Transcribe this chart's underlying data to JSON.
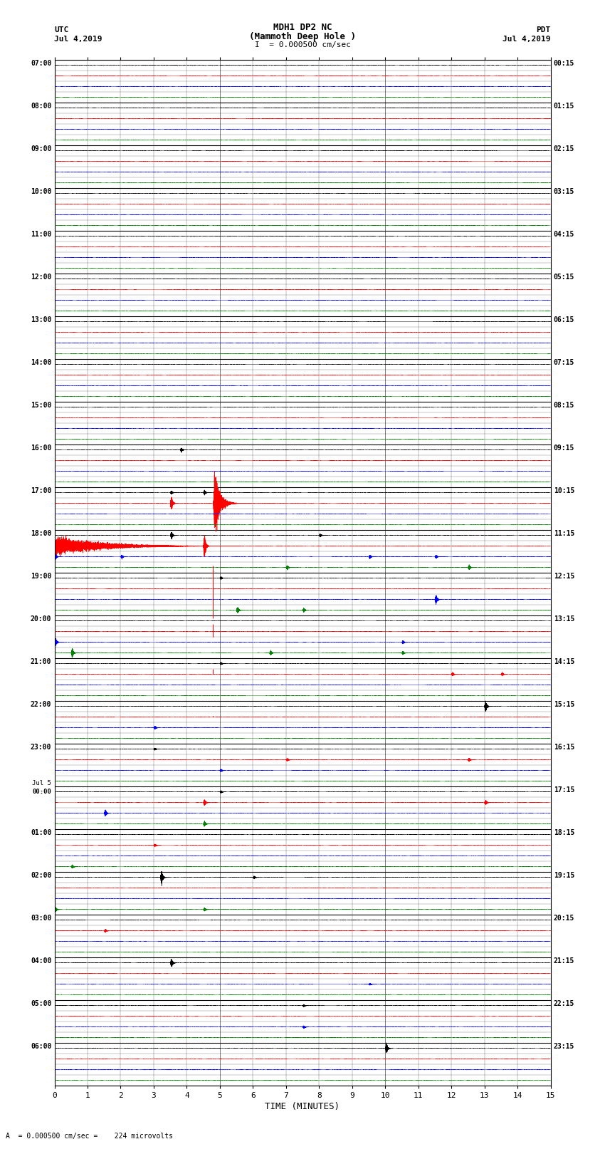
{
  "title_line1": "MDH1 DP2 NC",
  "title_line2": "(Mammoth Deep Hole )",
  "title_scale": "I  = 0.000500 cm/sec",
  "xlabel": "TIME (MINUTES)",
  "bottom_label": "A  = 0.000500 cm/sec =    224 microvolts",
  "num_hours": 24,
  "subtraces": 4,
  "sub_colors": [
    "black",
    "red",
    "blue",
    "green"
  ],
  "minutes_per_row": 15,
  "utc_labels": [
    "07:00",
    "",
    "",
    "",
    "08:00",
    "",
    "",
    "",
    "09:00",
    "",
    "",
    "",
    "10:00",
    "",
    "",
    "",
    "11:00",
    "",
    "",
    "",
    "12:00",
    "",
    "",
    "",
    "13:00",
    "",
    "",
    "",
    "14:00",
    "",
    "",
    "",
    "15:00",
    "",
    "",
    "",
    "16:00",
    "",
    "",
    "",
    "17:00",
    "",
    "",
    "",
    "18:00",
    "",
    "",
    "",
    "19:00",
    "",
    "",
    "",
    "20:00",
    "",
    "",
    "",
    "21:00",
    "",
    "",
    "",
    "22:00",
    "",
    "",
    "",
    "23:00",
    "",
    "",
    "",
    "Jul 5\n00:00",
    "",
    "",
    "",
    "01:00",
    "",
    "",
    "",
    "02:00",
    "",
    "",
    "",
    "03:00",
    "",
    "",
    "",
    "04:00",
    "",
    "",
    "",
    "05:00",
    "",
    "",
    "",
    "06:00",
    "",
    "",
    ""
  ],
  "pdt_labels": [
    "00:15",
    "",
    "",
    "",
    "01:15",
    "",
    "",
    "",
    "02:15",
    "",
    "",
    "",
    "03:15",
    "",
    "",
    "",
    "04:15",
    "",
    "",
    "",
    "05:15",
    "",
    "",
    "",
    "06:15",
    "",
    "",
    "",
    "07:15",
    "",
    "",
    "",
    "08:15",
    "",
    "",
    "",
    "09:15",
    "",
    "",
    "",
    "10:15",
    "",
    "",
    "",
    "11:15",
    "",
    "",
    "",
    "12:15",
    "",
    "",
    "",
    "13:15",
    "",
    "",
    "",
    "14:15",
    "",
    "",
    "",
    "15:15",
    "",
    "",
    "",
    "16:15",
    "",
    "",
    "",
    "17:15",
    "",
    "",
    "",
    "18:15",
    "",
    "",
    "",
    "19:15",
    "",
    "",
    "",
    "20:15",
    "",
    "",
    "",
    "21:15",
    "",
    "",
    "",
    "22:15",
    "",
    "",
    "",
    "23:15",
    "",
    "",
    ""
  ],
  "bg_color": "white",
  "sample_rate": 50,
  "noise_amp": 0.006,
  "quake_hour": 10,
  "quake_sub": 1,
  "quake_col": 4.8,
  "quake_amp": 3.5,
  "quake_duration_minutes": 1.2
}
